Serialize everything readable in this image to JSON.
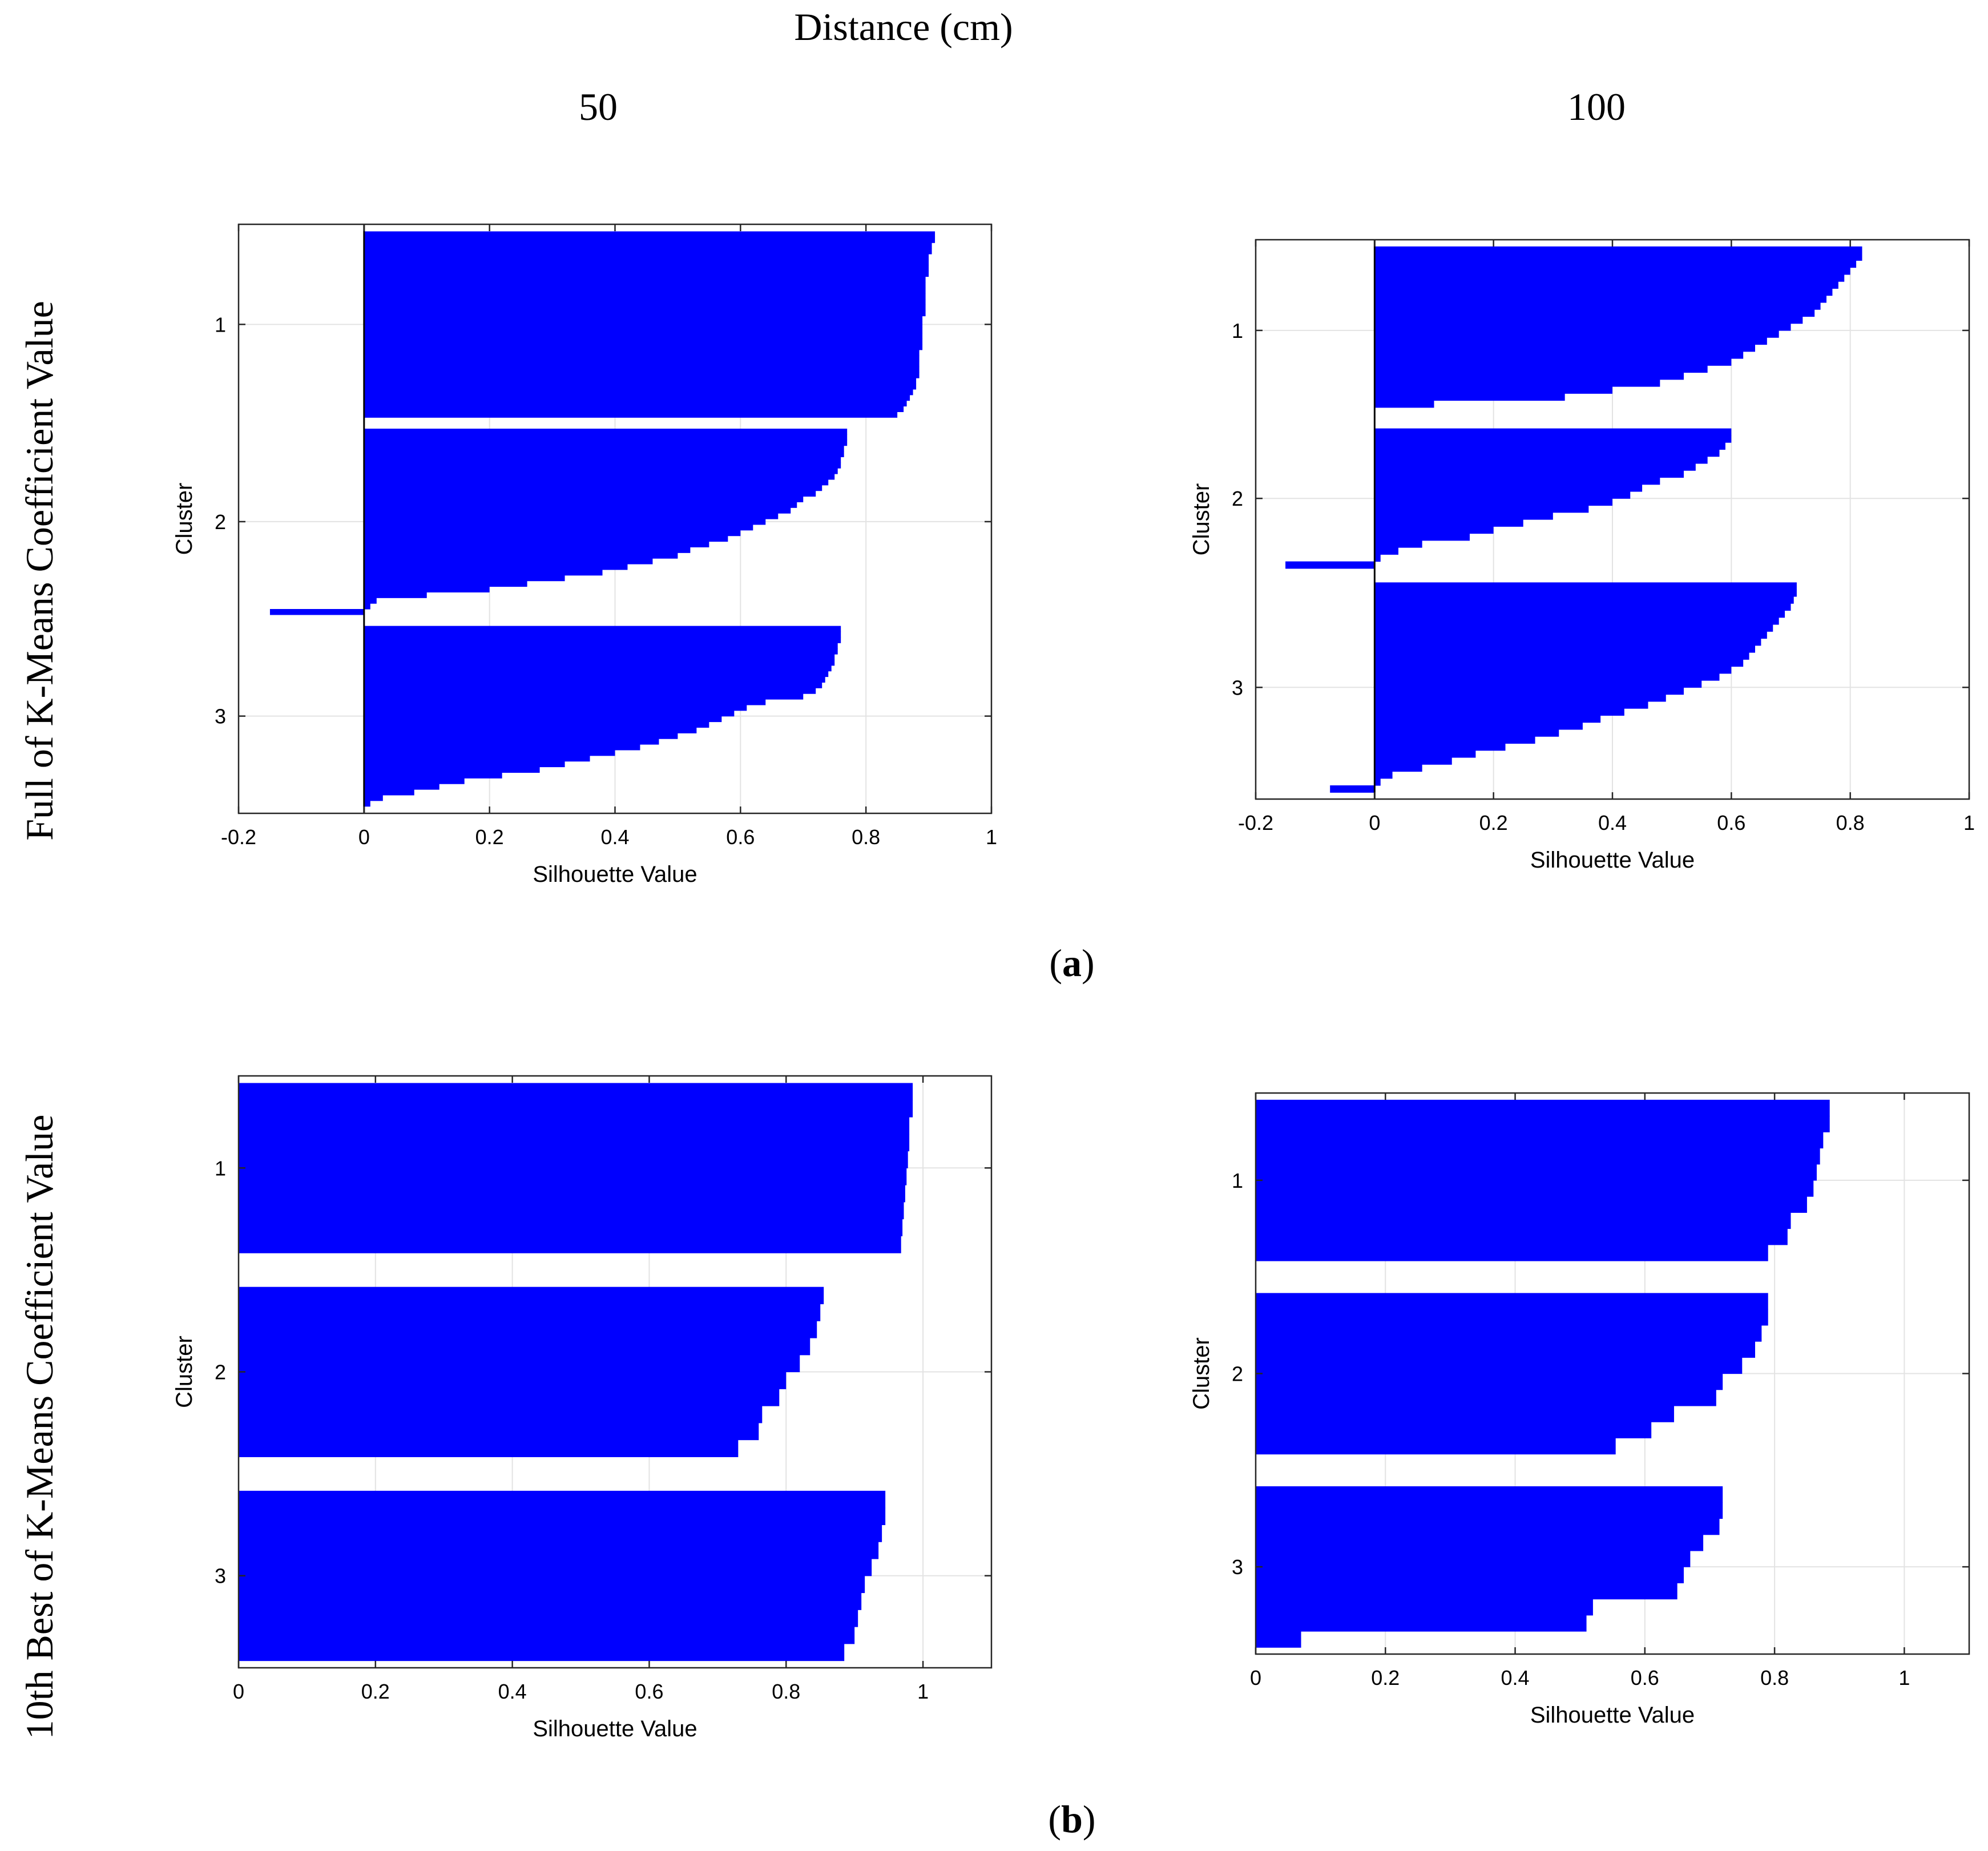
{
  "figure": {
    "header_title": "Distance (cm)",
    "col_labels": [
      "50",
      "100"
    ],
    "row_labels": [
      "Full of K-Means Coefficient Value",
      "10th Best of K-Means Coefficient Value"
    ],
    "panel_labels": [
      {
        "open": "(",
        "letter": "a",
        "close": ")"
      },
      {
        "open": "(",
        "letter": "b",
        "close": ")"
      }
    ],
    "bar_color": "#0000FF"
  },
  "chart_data": [
    {
      "type": "bar",
      "orientation": "horizontal",
      "panel": "a",
      "distance": "50",
      "xlabel": "Silhouette Value",
      "ylabel": "Cluster",
      "xlim": [
        -0.2,
        1
      ],
      "xticks": [
        "-0.2",
        "0",
        "0.2",
        "0.4",
        "0.6",
        "0.8",
        "1"
      ],
      "tick_values": [
        -0.2,
        0,
        0.2,
        0.4,
        0.6,
        0.8,
        1
      ],
      "ylim": [
        0.5,
        3.45
      ],
      "yticks": [
        "1",
        "2",
        "3"
      ],
      "grid": true,
      "clusters": [
        {
          "name": "1",
          "values": [
            0.91,
            0.91,
            0.905,
            0.905,
            0.9,
            0.9,
            0.9,
            0.9,
            0.895,
            0.895,
            0.895,
            0.895,
            0.895,
            0.895,
            0.895,
            0.89,
            0.89,
            0.89,
            0.89,
            0.89,
            0.89,
            0.885,
            0.885,
            0.885,
            0.885,
            0.885,
            0.88,
            0.88,
            0.875,
            0.87,
            0.865,
            0.86,
            0.85
          ]
        },
        {
          "name": "2",
          "values": [
            0.77,
            0.77,
            0.77,
            0.765,
            0.765,
            0.76,
            0.76,
            0.755,
            0.75,
            0.74,
            0.73,
            0.72,
            0.7,
            0.69,
            0.68,
            0.66,
            0.64,
            0.62,
            0.6,
            0.58,
            0.55,
            0.52,
            0.5,
            0.46,
            0.42,
            0.38,
            0.32,
            0.26,
            0.2,
            0.1,
            0.02,
            0.01,
            -0.15
          ]
        },
        {
          "name": "3",
          "values": [
            0.76,
            0.76,
            0.76,
            0.755,
            0.755,
            0.75,
            0.75,
            0.745,
            0.74,
            0.735,
            0.73,
            0.72,
            0.7,
            0.64,
            0.61,
            0.59,
            0.57,
            0.55,
            0.53,
            0.5,
            0.47,
            0.44,
            0.4,
            0.36,
            0.32,
            0.28,
            0.22,
            0.16,
            0.12,
            0.08,
            0.03,
            0.01
          ]
        }
      ]
    },
    {
      "type": "bar",
      "orientation": "horizontal",
      "panel": "a",
      "distance": "100",
      "xlabel": "Silhouette Value",
      "ylabel": "Cluster",
      "xlim": [
        -0.2,
        1
      ],
      "xticks": [
        "-0.2",
        "0",
        "0.2",
        "0.4",
        "0.6",
        "0.8",
        "1"
      ],
      "tick_values": [
        -0.2,
        0,
        0.2,
        0.4,
        0.6,
        0.8,
        1
      ],
      "ylim": [
        0.45,
        3.75
      ],
      "yticks": [
        "1",
        "2",
        "3"
      ],
      "grid": true,
      "clusters": [
        {
          "name": "1",
          "values": [
            0.82,
            0.82,
            0.81,
            0.8,
            0.79,
            0.78,
            0.77,
            0.76,
            0.75,
            0.74,
            0.72,
            0.7,
            0.68,
            0.66,
            0.64,
            0.62,
            0.6,
            0.56,
            0.52,
            0.48,
            0.4,
            0.32,
            0.1,
            0.0
          ]
        },
        {
          "name": "2",
          "values": [
            0.6,
            0.6,
            0.59,
            0.58,
            0.56,
            0.54,
            0.52,
            0.48,
            0.45,
            0.43,
            0.4,
            0.36,
            0.3,
            0.25,
            0.2,
            0.16,
            0.08,
            0.04,
            0.01,
            -0.15
          ]
        },
        {
          "name": "3",
          "values": [
            0.71,
            0.71,
            0.705,
            0.7,
            0.69,
            0.68,
            0.67,
            0.66,
            0.65,
            0.64,
            0.63,
            0.62,
            0.6,
            0.58,
            0.55,
            0.52,
            0.49,
            0.46,
            0.42,
            0.38,
            0.35,
            0.31,
            0.27,
            0.22,
            0.17,
            0.13,
            0.08,
            0.03,
            0.01,
            -0.075
          ]
        }
      ]
    },
    {
      "type": "bar",
      "orientation": "horizontal",
      "panel": "b",
      "distance": "50",
      "xlabel": "Silhouette Value",
      "ylabel": "Cluster",
      "xlim": [
        0,
        1.1
      ],
      "xticks": [
        "0",
        "0.2",
        "0.4",
        "0.6",
        "0.8",
        "1"
      ],
      "tick_values": [
        0,
        0.2,
        0.4,
        0.6,
        0.8,
        1
      ],
      "ylim": [
        0.5,
        3.5
      ],
      "yticks": [
        "1",
        "2",
        "3"
      ],
      "grid": true,
      "clusters": [
        {
          "name": "1",
          "values": [
            0.985,
            0.985,
            0.98,
            0.98,
            0.978,
            0.976,
            0.974,
            0.972,
            0.97,
            0.968
          ]
        },
        {
          "name": "2",
          "values": [
            0.855,
            0.85,
            0.845,
            0.835,
            0.82,
            0.8,
            0.79,
            0.765,
            0.76,
            0.73
          ]
        },
        {
          "name": "3",
          "values": [
            0.945,
            0.945,
            0.94,
            0.935,
            0.925,
            0.915,
            0.91,
            0.905,
            0.9,
            0.885
          ]
        }
      ]
    },
    {
      "type": "bar",
      "orientation": "horizontal",
      "panel": "b",
      "distance": "100",
      "xlabel": "Silhouette Value",
      "ylabel": "Cluster",
      "xlim": [
        0,
        1.1
      ],
      "xticks": [
        "0",
        "0.2",
        "0.4",
        "0.6",
        "0.8",
        "1"
      ],
      "tick_values": [
        0,
        0.2,
        0.4,
        0.6,
        0.8,
        1
      ],
      "ylim": [
        0.5,
        3.55
      ],
      "yticks": [
        "1",
        "2",
        "3"
      ],
      "grid": true,
      "clusters": [
        {
          "name": "1",
          "values": [
            0.885,
            0.885,
            0.875,
            0.87,
            0.865,
            0.86,
            0.85,
            0.825,
            0.82,
            0.79
          ]
        },
        {
          "name": "2",
          "values": [
            0.79,
            0.79,
            0.78,
            0.77,
            0.75,
            0.72,
            0.71,
            0.645,
            0.61,
            0.555
          ]
        },
        {
          "name": "3",
          "values": [
            0.72,
            0.72,
            0.715,
            0.69,
            0.67,
            0.66,
            0.65,
            0.52,
            0.51,
            0.07
          ]
        }
      ]
    }
  ]
}
